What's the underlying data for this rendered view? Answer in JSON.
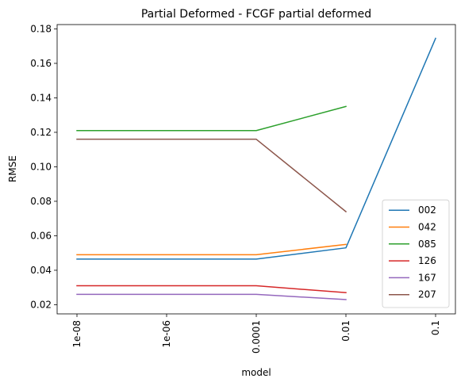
{
  "chart_data": {
    "type": "line",
    "title": "Partial Deformed - FCGF partial deformed",
    "xlabel": "model",
    "ylabel": "RMSE",
    "x": [
      "1e-08",
      "1e-06",
      "0.0001",
      "0.01",
      "0.1"
    ],
    "xticks": [
      "1e-08",
      "1e-06",
      "0.0001",
      "0.01",
      "0.1"
    ],
    "yticks": [
      "0.02",
      "0.04",
      "0.06",
      "0.08",
      "0.10",
      "0.12",
      "0.14",
      "0.16",
      "0.18"
    ],
    "yticks_values": [
      0.02,
      0.04,
      0.06,
      0.08,
      0.1,
      0.12,
      0.14,
      0.16,
      0.18
    ],
    "ylim": [
      0.0147,
      0.1825
    ],
    "grid": false,
    "legend_position": "lower-right",
    "series": [
      {
        "name": "002",
        "color": "#1f77b4",
        "values": [
          0.0465,
          0.0465,
          0.0465,
          0.053,
          0.1745
        ]
      },
      {
        "name": "042",
        "color": "#ff7f0e",
        "values": [
          0.049,
          0.049,
          0.049,
          0.055,
          null
        ]
      },
      {
        "name": "085",
        "color": "#2ca02c",
        "values": [
          0.121,
          0.121,
          0.121,
          0.135,
          null
        ]
      },
      {
        "name": "126",
        "color": "#d62728",
        "values": [
          0.031,
          0.031,
          0.031,
          0.027,
          null
        ]
      },
      {
        "name": "167",
        "color": "#9467bd",
        "values": [
          0.026,
          0.026,
          0.026,
          0.023,
          null
        ]
      },
      {
        "name": "207",
        "color": "#8c564b",
        "values": [
          0.116,
          0.116,
          0.116,
          0.074,
          null
        ]
      }
    ]
  }
}
